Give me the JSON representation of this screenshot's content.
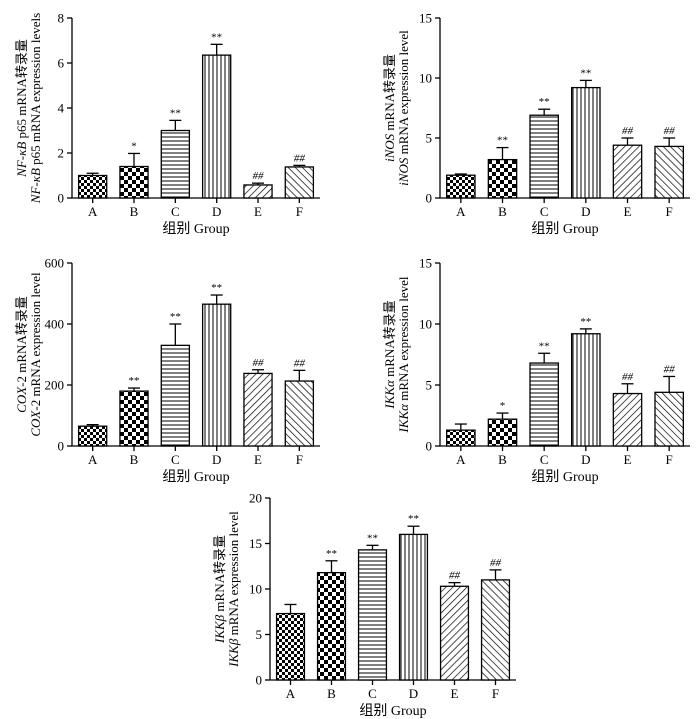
{
  "chart_data": [
    {
      "type": "bar",
      "id": "nfkb",
      "ylabel_cn": [
        "NF-κB",
        " p65 mRNA转录量"
      ],
      "ylabel_en": [
        "NF-κB",
        " p65 mRNA expression levels"
      ],
      "xlabel": "组别 Group",
      "categories": [
        "A",
        "B",
        "C",
        "D",
        "E",
        "F"
      ],
      "values": [
        1.0,
        1.4,
        3.0,
        6.35,
        0.58,
        1.38
      ],
      "errors": [
        0.1,
        0.58,
        0.45,
        0.48,
        0.08,
        0.07
      ],
      "significance": [
        "",
        "*",
        "**",
        "**",
        "##",
        "##"
      ],
      "ylim": [
        0,
        8
      ],
      "yticks": [
        0,
        2,
        4,
        6,
        8
      ]
    },
    {
      "type": "bar",
      "id": "inos",
      "ylabel_cn": [
        "iNOS",
        " mRNA转录量"
      ],
      "ylabel_en": [
        "iNOS",
        " mRNA expression level"
      ],
      "xlabel": "组别 Group",
      "categories": [
        "A",
        "B",
        "C",
        "D",
        "E",
        "F"
      ],
      "values": [
        1.9,
        3.2,
        6.9,
        9.2,
        4.4,
        4.3
      ],
      "errors": [
        0.1,
        1.0,
        0.5,
        0.6,
        0.6,
        0.7
      ],
      "significance": [
        "",
        "**",
        "**",
        "**",
        "##",
        "##"
      ],
      "ylim": [
        0,
        15
      ],
      "yticks": [
        0,
        5,
        10,
        15
      ]
    },
    {
      "type": "bar",
      "id": "cox2",
      "ylabel_cn": [
        "COX",
        "-2 mRNA转录量"
      ],
      "ylabel_en": [
        "COX",
        "-2 mRNA expression level"
      ],
      "xlabel": "组别 Group",
      "categories": [
        "A",
        "B",
        "C",
        "D",
        "E",
        "F"
      ],
      "values": [
        65,
        180,
        330,
        465,
        238,
        213
      ],
      "errors": [
        5,
        10,
        70,
        30,
        12,
        35
      ],
      "significance": [
        "",
        "**",
        "**",
        "**",
        "##",
        "##"
      ],
      "ylim": [
        0,
        600
      ],
      "yticks": [
        0,
        200,
        400,
        600
      ]
    },
    {
      "type": "bar",
      "id": "ikka",
      "ylabel_cn": [
        "IKKα",
        " mRNA转录量"
      ],
      "ylabel_en": [
        "IKKα",
        " mRNA expression level"
      ],
      "xlabel": "组别 Group",
      "categories": [
        "A",
        "B",
        "C",
        "D",
        "E",
        "F"
      ],
      "values": [
        1.3,
        2.2,
        6.8,
        9.2,
        4.3,
        4.4
      ],
      "errors": [
        0.5,
        0.5,
        0.8,
        0.4,
        0.8,
        1.3
      ],
      "significance": [
        "",
        "*",
        "**",
        "**",
        "##",
        "##"
      ],
      "ylim": [
        0,
        15
      ],
      "yticks": [
        0,
        5,
        10,
        15
      ]
    },
    {
      "type": "bar",
      "id": "ikkb",
      "ylabel_cn": [
        "IKKβ",
        " mRNA转录量"
      ],
      "ylabel_en": [
        "IKKβ",
        " mRNA expression level"
      ],
      "xlabel": "组别 Group",
      "categories": [
        "A",
        "B",
        "C",
        "D",
        "E",
        "F"
      ],
      "values": [
        7.3,
        11.8,
        14.3,
        16.0,
        10.3,
        11.0
      ],
      "errors": [
        1.0,
        1.3,
        0.5,
        0.9,
        0.4,
        1.1
      ],
      "significance": [
        "",
        "**",
        "**",
        "**",
        "##",
        "##"
      ],
      "ylim": [
        0,
        20
      ],
      "yticks": [
        0,
        5,
        10,
        15,
        20
      ]
    }
  ]
}
